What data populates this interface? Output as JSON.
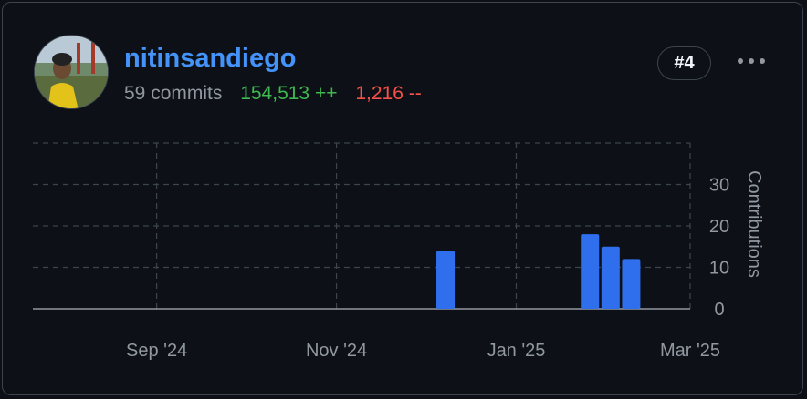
{
  "user": {
    "name": "nitinsandiego",
    "commits": "59 commits",
    "additions": "154,513 ++",
    "deletions": "1,216 --",
    "rank": "#4"
  },
  "colors": {
    "bar": "#2f6fed",
    "additions": "#3fb950",
    "deletions": "#f85149",
    "link": "#4493f8"
  },
  "icons": {
    "menu": "kebab-horizontal-icon"
  },
  "chart_data": {
    "type": "bar",
    "grid": true,
    "ylabel": "Contributions",
    "ylim": [
      0,
      40
    ],
    "yticks": [
      0,
      10,
      20,
      30
    ],
    "xlim": [
      "2024-07-21",
      "2025-03-01"
    ],
    "xticks": [
      {
        "date": "2024-09-01",
        "label": "Sep '24"
      },
      {
        "date": "2024-11-01",
        "label": "Nov '24"
      },
      {
        "date": "2025-01-01",
        "label": "Jan '25"
      },
      {
        "date": "2025-03-01",
        "label": "Mar '25"
      }
    ],
    "series": [
      {
        "x": [
          "2024-12-08",
          "2025-01-26",
          "2025-02-02",
          "2025-02-09"
        ],
        "values": [
          14,
          18,
          15,
          12
        ]
      }
    ]
  }
}
